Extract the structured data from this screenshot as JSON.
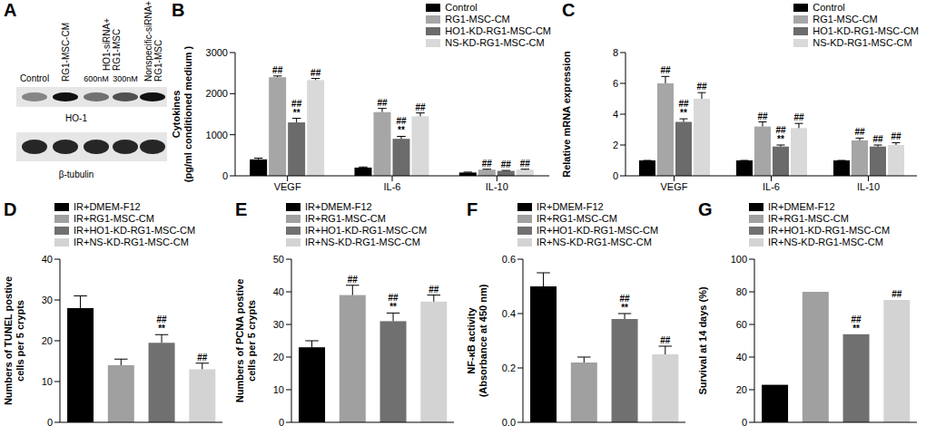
{
  "blot": {
    "panel": "A",
    "lanes": [
      [
        "Control"
      ],
      [
        "RG1-MSC-CM"
      ],
      [
        "600nM"
      ],
      [
        "300nM"
      ],
      [
        "Nonspecific-siRNA+",
        "RG1-MSC"
      ]
    ],
    "group": {
      "lines": [
        "HO1-siRNA+",
        "RG1-MSC"
      ],
      "lanes": [
        2,
        3
      ]
    },
    "rows": [
      "HO-1",
      "β-tubulin"
    ]
  },
  "chart_data": [
    {
      "panel": "B",
      "type": "bar",
      "ylabel": [
        "Cytokines",
        "(pg/ml conditioned medium )"
      ],
      "categories": [
        "VEGF",
        "IL-6",
        "IL-10"
      ],
      "ylim": [
        0,
        3000
      ],
      "yticks": [
        0,
        1000,
        2000,
        3000
      ],
      "legend": "top right",
      "series": [
        {
          "name": "Control",
          "color": "#000000",
          "values": [
            400,
            200,
            80
          ],
          "errors": [
            30,
            15,
            10
          ],
          "significance": [
            null,
            null,
            null
          ]
        },
        {
          "name": "RG1-MSC-CM",
          "color": "#a6a6a6",
          "values": [
            2400,
            1550,
            150
          ],
          "errors": [
            30,
            90,
            10
          ],
          "significance": [
            [
              "##"
            ],
            [
              "##"
            ],
            [
              "##"
            ]
          ]
        },
        {
          "name": "HO1-KD-RG1-MSC-CM",
          "color": "#6b6b6b",
          "values": [
            1300,
            900,
            120
          ],
          "errors": [
            100,
            60,
            10
          ],
          "significance": [
            [
              "##",
              "**"
            ],
            [
              "##",
              "**"
            ],
            [
              "##"
            ]
          ]
        },
        {
          "name": "NS-KD-RG1-MSC-CM",
          "color": "#d9d9d9",
          "values": [
            2330,
            1450,
            150
          ],
          "errors": [
            40,
            80,
            10
          ],
          "significance": [
            [
              "##"
            ],
            [
              "##"
            ],
            [
              "##"
            ]
          ]
        }
      ]
    },
    {
      "panel": "C",
      "type": "bar",
      "ylabel": [
        "Relative mRNA expression"
      ],
      "categories": [
        "VEGF",
        "IL-6",
        "IL-10"
      ],
      "ylim": [
        0,
        8
      ],
      "yticks": [
        0,
        2,
        4,
        6,
        8
      ],
      "legend": "top right",
      "series": [
        {
          "name": "Control",
          "color": "#000000",
          "values": [
            1,
            1,
            1
          ],
          "errors": [
            0,
            0,
            0
          ],
          "significance": [
            null,
            null,
            null
          ]
        },
        {
          "name": "RG1-MSC-CM",
          "color": "#a6a6a6",
          "values": [
            6.0,
            3.2,
            2.3
          ],
          "errors": [
            0.45,
            0.3,
            0.15
          ],
          "significance": [
            [
              "##"
            ],
            [
              "##"
            ],
            [
              "##"
            ]
          ]
        },
        {
          "name": "HO1-KD-RG1-MSC-CM",
          "color": "#6b6b6b",
          "values": [
            3.5,
            1.9,
            1.9
          ],
          "errors": [
            0.2,
            0.1,
            0.1
          ],
          "significance": [
            [
              "##",
              "**"
            ],
            [
              "##",
              "**"
            ],
            [
              "##"
            ]
          ]
        },
        {
          "name": "NS-KD-RG1-MSC-CM",
          "color": "#d9d9d9",
          "values": [
            5.0,
            3.1,
            2.0
          ],
          "errors": [
            0.4,
            0.3,
            0.15
          ],
          "significance": [
            [
              "##"
            ],
            [
              "##"
            ],
            [
              "##"
            ]
          ]
        }
      ]
    },
    {
      "panel": "D",
      "type": "bar",
      "ylabel": [
        "Numbers of TUNEL postive",
        "cells per 5 crypts"
      ],
      "categories": [
        "IR+DMEM-F12",
        "IR+RG1-MSC-CM",
        "IR+HO1-KD-RG1-MSC-CM",
        "IR+NS-KD-RG1-MSC-CM"
      ],
      "tick_labels": "y",
      "legend": "top left",
      "colors": [
        "#000000",
        "#a0a0a0",
        "#707070",
        "#d3d3d3"
      ],
      "values": [
        28,
        14,
        19.5,
        13
      ],
      "errors": [
        3,
        1.5,
        2,
        1.5
      ],
      "significance": [
        null,
        null,
        [
          "##",
          "**"
        ],
        [
          "##"
        ]
      ],
      "ylim": [
        0,
        40
      ],
      "yticks": [
        0,
        10,
        20,
        30,
        40
      ]
    },
    {
      "panel": "E",
      "type": "bar",
      "ylabel": [
        "Numbers of PCNA postive",
        "cells per 5 crypts"
      ],
      "categories": [
        "IR+DMEM-F12",
        "IR+RG1-MSC-CM",
        "IR+HO1-KD-RG1-MSC-CM",
        "IR+NS-KD-RG1-MSC-CM"
      ],
      "tick_labels": "y",
      "legend": "top left",
      "colors": [
        "#000000",
        "#a0a0a0",
        "#707070",
        "#d3d3d3"
      ],
      "values": [
        23,
        39,
        31,
        37
      ],
      "errors": [
        2,
        3,
        2.5,
        2
      ],
      "significance": [
        null,
        [
          "##"
        ],
        [
          "##",
          "**"
        ],
        [
          "##"
        ]
      ],
      "ylim": [
        0,
        50
      ],
      "yticks": [
        0,
        10,
        20,
        30,
        40,
        50
      ]
    },
    {
      "panel": "F",
      "type": "bar",
      "ylabel": [
        "NF-κB activity",
        "(Absorbance at 450 nm)"
      ],
      "categories": [
        "IR+DMEM-F12",
        "IR+RG1-MSC-CM",
        "IR+HO1-KD-RG1-MSC-CM",
        "IR+NS-KD-RG1-MSC-CM"
      ],
      "tick_labels": "y",
      "legend": "top left",
      "colors": [
        "#000000",
        "#a0a0a0",
        "#707070",
        "#d3d3d3"
      ],
      "values": [
        0.5,
        0.22,
        0.38,
        0.25
      ],
      "errors": [
        0.05,
        0.02,
        0.02,
        0.03
      ],
      "significance": [
        null,
        null,
        [
          "##",
          "**"
        ],
        [
          "##"
        ]
      ],
      "ylim": [
        0,
        0.6
      ],
      "yticks": [
        {
          "value": 0,
          "label": "0.0"
        },
        0.2,
        0.4,
        0.6
      ]
    },
    {
      "panel": "G",
      "type": "bar",
      "ylabel": [
        "Survival at 14 days (%)"
      ],
      "categories": [
        "IR+DMEM-F12",
        "IR+RG1-MSC-CM",
        "IR+HO1-KD-RG1-MSC-CM",
        "IR+NS-KD-RG1-MSC-CM"
      ],
      "tick_labels": "y",
      "legend": "top left",
      "colors": [
        "#000000",
        "#a0a0a0",
        "#707070",
        "#d3d3d3"
      ],
      "values": [
        23,
        80,
        54,
        75
      ],
      "significance": [
        null,
        null,
        [
          "##",
          "**"
        ],
        [
          "##"
        ]
      ],
      "ylim": [
        0,
        100
      ],
      "yticks": [
        0,
        20,
        40,
        60,
        80,
        100
      ]
    }
  ]
}
